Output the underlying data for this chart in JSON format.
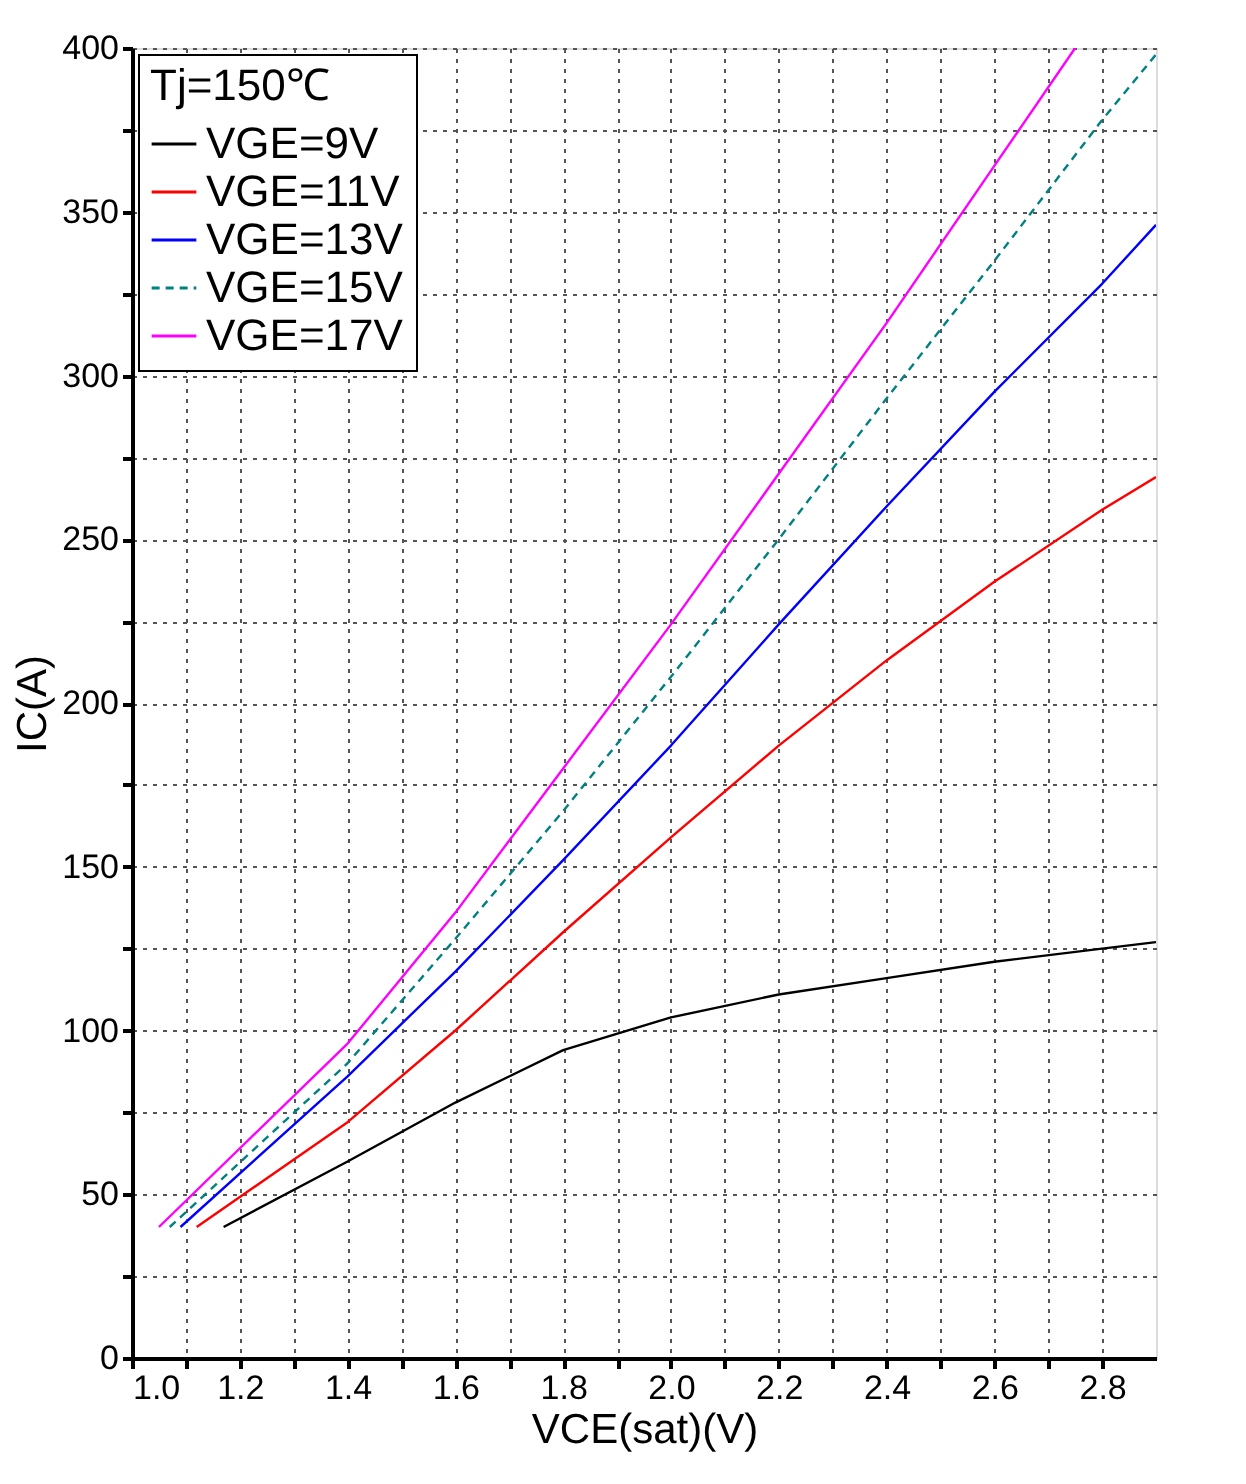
{
  "chart_data": {
    "type": "line",
    "xlabel": "VCE(sat)(V)",
    "ylabel": "IC(A)",
    "legend_title": "Tj=150℃",
    "legend": "top left",
    "grid": true,
    "xlim": [
      1.0,
      2.9
    ],
    "ylim": [
      0,
      400
    ],
    "xticks": [
      {
        "value": 1.0,
        "label": "1.0"
      },
      {
        "value": 1.1,
        "label": null
      },
      1.2,
      {
        "value": 1.3,
        "label": null
      },
      1.4,
      {
        "value": 1.5,
        "label": null
      },
      1.6,
      {
        "value": 1.7,
        "label": null
      },
      1.8,
      {
        "value": 1.9,
        "label": null
      },
      {
        "value": 2.0,
        "label": "2.0"
      },
      {
        "value": 2.1,
        "label": null
      },
      2.2,
      {
        "value": 2.3,
        "label": null
      },
      2.4,
      {
        "value": 2.5,
        "label": null
      },
      2.6,
      {
        "value": 2.7,
        "label": null
      },
      2.8
    ],
    "yticks": [
      0,
      {
        "value": 25,
        "label": null
      },
      50,
      {
        "value": 75,
        "label": null
      },
      100,
      {
        "value": 125,
        "label": null
      },
      150,
      {
        "value": 175,
        "label": null
      },
      200,
      {
        "value": 225,
        "label": null
      },
      250,
      {
        "value": 275,
        "label": null
      },
      300,
      {
        "value": 325,
        "label": null
      },
      350,
      {
        "value": 375,
        "label": null
      },
      400
    ],
    "series": [
      {
        "name": "VGE=9V",
        "color": "#000000",
        "line_style": "solid",
        "x": [
          1.17,
          1.4,
          1.6,
          1.8,
          2.0,
          2.2,
          2.4,
          2.6,
          2.8,
          2.9
        ],
        "values": [
          40,
          60,
          78,
          94,
          104,
          111,
          116,
          121,
          125,
          127
        ]
      },
      {
        "name": "VGE=11V",
        "color": "#ff0000",
        "line_style": "solid",
        "x": [
          1.12,
          1.4,
          1.6,
          1.8,
          2.0,
          2.2,
          2.4,
          2.6,
          2.8,
          2.9
        ],
        "values": [
          40,
          72,
          100,
          130,
          159,
          187,
          213,
          237,
          259,
          269
        ]
      },
      {
        "name": "VGE=13V",
        "color": "#0000ff",
        "line_style": "solid",
        "x": [
          1.09,
          1.4,
          1.6,
          1.8,
          2.0,
          2.2,
          2.4,
          2.6,
          2.8,
          2.9
        ],
        "values": [
          40,
          86,
          118,
          152,
          187,
          224,
          260,
          295,
          328,
          346
        ]
      },
      {
        "name": "VGE=15V",
        "color": "#008080",
        "line_style": "dashed",
        "x": [
          1.07,
          1.4,
          1.6,
          1.8,
          2.0,
          2.2,
          2.4,
          2.6,
          2.8,
          2.9
        ],
        "values": [
          40,
          90,
          128,
          167,
          208,
          250,
          293,
          335,
          378,
          398
        ]
      },
      {
        "name": "VGE=17V",
        "color": "#ff00ff",
        "line_style": "solid",
        "x": [
          1.05,
          1.4,
          1.6,
          1.8,
          2.0,
          2.2,
          2.4,
          2.6,
          2.75
        ],
        "values": [
          40,
          96,
          136,
          180,
          224,
          270,
          316,
          364,
          400
        ]
      }
    ]
  }
}
